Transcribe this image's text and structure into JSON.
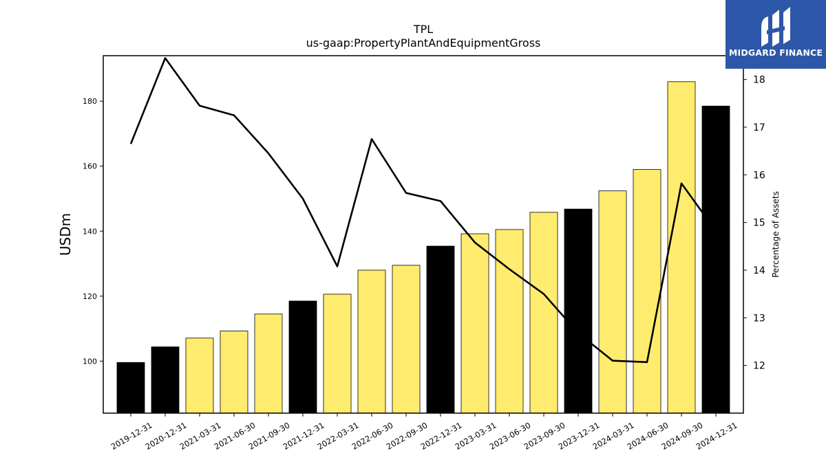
{
  "logo": {
    "text": "MIDGARD FINANCE",
    "background": "#2d57a8"
  },
  "chart_data": {
    "type": "bar",
    "title": "TPL",
    "subtitle": "us-gaap:PropertyPlantAndEquipmentGross",
    "ylabel": "USDm",
    "y2label": "Percentage of Assets",
    "ylim": [
      84,
      194
    ],
    "y2lim": [
      11.0,
      18.5
    ],
    "yticks": [
      100,
      120,
      140,
      160,
      180
    ],
    "y2ticks": [
      12,
      13,
      14,
      15,
      16,
      17,
      18
    ],
    "categories": [
      "2019-12-31",
      "2020-12-31",
      "2021-03-31",
      "2021-06-30",
      "2021-09-30",
      "2021-12-31",
      "2022-03-31",
      "2022-06-30",
      "2022-09-30",
      "2022-12-31",
      "2023-03-31",
      "2023-06-30",
      "2023-09-30",
      "2023-12-31",
      "2024-03-31",
      "2024-06-30",
      "2024-09-30",
      "2024-12-31"
    ],
    "series": [
      {
        "type": "bar",
        "values": [
          99.6,
          104.4,
          107.1,
          109.3,
          114.5,
          118.5,
          120.6,
          128.0,
          129.5,
          135.4,
          139.2,
          140.5,
          145.8,
          146.8,
          152.4,
          159.0,
          186.0,
          178.5
        ],
        "colors": [
          "#000000",
          "#000000",
          "#ffec6e",
          "#ffec6e",
          "#ffec6e",
          "#000000",
          "#ffec6e",
          "#ffec6e",
          "#ffec6e",
          "#000000",
          "#ffec6e",
          "#ffec6e",
          "#ffec6e",
          "#000000",
          "#ffec6e",
          "#ffec6e",
          "#ffec6e",
          "#000000"
        ]
      },
      {
        "type": "line",
        "axis": "right",
        "values": [
          16.65,
          18.45,
          17.45,
          17.25,
          16.45,
          15.5,
          14.08,
          16.75,
          15.62,
          15.45,
          14.58,
          14.02,
          13.5,
          12.68,
          12.1,
          12.07,
          15.82,
          14.82
        ],
        "color": "#000000"
      }
    ],
    "grid": false,
    "legend": "none"
  }
}
